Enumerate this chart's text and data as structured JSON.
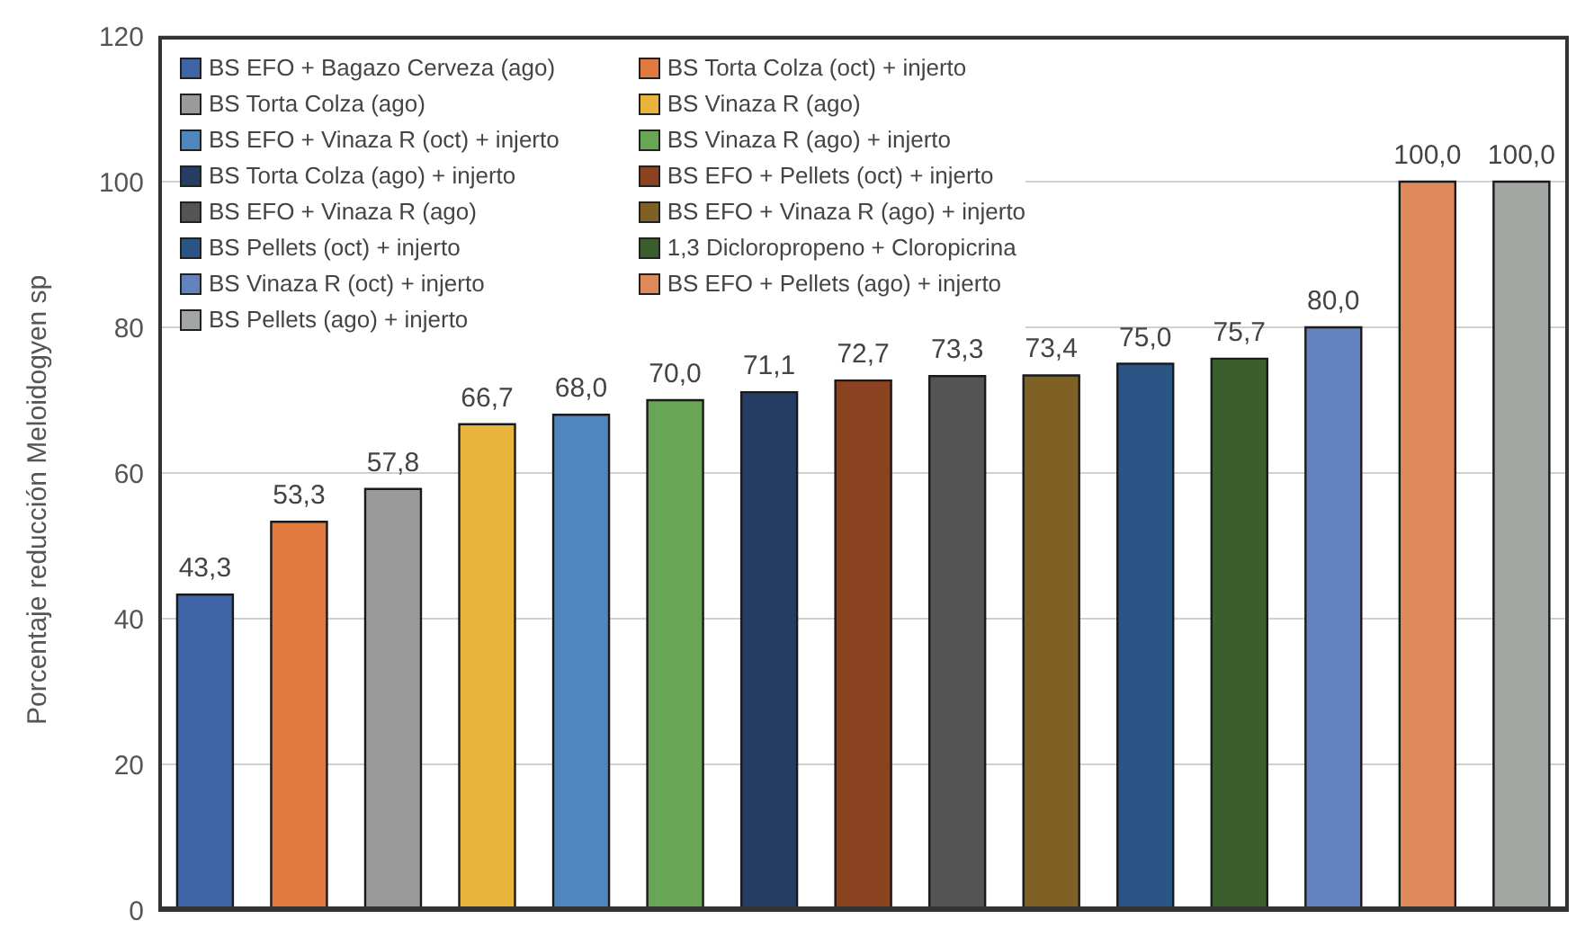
{
  "chart_data": {
    "type": "bar",
    "ylabel": "Porcentaje reducción Meloidogyen sp",
    "categories": [
      null,
      null,
      null,
      null,
      null,
      null,
      null,
      null,
      null,
      null,
      null,
      null,
      null,
      null,
      null
    ],
    "ylim": [
      0,
      120
    ],
    "yticks": [
      0,
      20,
      40,
      60,
      80,
      100,
      120
    ],
    "grid": "y",
    "legend": "top left",
    "series": [
      {
        "name": "BS EFO + Bagazo Cerveza (ago)",
        "color": "#3f64a8",
        "values": [
          43.3,
          null,
          null,
          null,
          null,
          null,
          null,
          null,
          null,
          null,
          null,
          null,
          null,
          null,
          null
        ],
        "value_labels": [
          "43,3",
          null,
          null,
          null,
          null,
          null,
          null,
          null,
          null,
          null,
          null,
          null,
          null,
          null,
          null
        ]
      },
      {
        "name": "BS Torta Colza (oct) + injerto",
        "color": "#e07a3e",
        "values": [
          null,
          53.3,
          null,
          null,
          null,
          null,
          null,
          null,
          null,
          null,
          null,
          null,
          null,
          null,
          null
        ],
        "value_labels": [
          null,
          "53,3",
          null,
          null,
          null,
          null,
          null,
          null,
          null,
          null,
          null,
          null,
          null,
          null,
          null
        ]
      },
      {
        "name": "BS Torta Colza (ago)",
        "color": "#9b9b9b",
        "values": [
          null,
          null,
          57.8,
          null,
          null,
          null,
          null,
          null,
          null,
          null,
          null,
          null,
          null,
          null,
          null
        ],
        "value_labels": [
          null,
          null,
          "57,8",
          null,
          null,
          null,
          null,
          null,
          null,
          null,
          null,
          null,
          null,
          null,
          null
        ]
      },
      {
        "name": "BS Vinaza R (ago)",
        "color": "#e8b43c",
        "values": [
          null,
          null,
          null,
          66.7,
          null,
          null,
          null,
          null,
          null,
          null,
          null,
          null,
          null,
          null,
          null
        ],
        "value_labels": [
          null,
          null,
          null,
          "66,7",
          null,
          null,
          null,
          null,
          null,
          null,
          null,
          null,
          null,
          null,
          null
        ]
      },
      {
        "name": "BS EFO + Vinaza R (oct) + injerto",
        "color": "#4f86bd",
        "values": [
          null,
          null,
          null,
          null,
          68.0,
          null,
          null,
          null,
          null,
          null,
          null,
          null,
          null,
          null,
          null
        ],
        "value_labels": [
          null,
          null,
          null,
          null,
          "68,0",
          null,
          null,
          null,
          null,
          null,
          null,
          null,
          null,
          null,
          null
        ]
      },
      {
        "name": "BS Vinaza R (ago) + injerto",
        "color": "#68a655",
        "values": [
          null,
          null,
          null,
          null,
          null,
          70.0,
          null,
          null,
          null,
          null,
          null,
          null,
          null,
          null,
          null
        ],
        "value_labels": [
          null,
          null,
          null,
          null,
          null,
          "70,0",
          null,
          null,
          null,
          null,
          null,
          null,
          null,
          null,
          null
        ]
      },
      {
        "name": "BS Torta Colza (ago) + injerto",
        "color": "#263d63",
        "values": [
          null,
          null,
          null,
          null,
          null,
          null,
          71.1,
          null,
          null,
          null,
          null,
          null,
          null,
          null,
          null
        ],
        "value_labels": [
          null,
          null,
          null,
          null,
          null,
          null,
          "71,1",
          null,
          null,
          null,
          null,
          null,
          null,
          null,
          null
        ]
      },
      {
        "name": "BS EFO + Pellets (oct) + injerto",
        "color": "#8b4220",
        "values": [
          null,
          null,
          null,
          null,
          null,
          null,
          null,
          72.7,
          null,
          null,
          null,
          null,
          null,
          null,
          null
        ],
        "value_labels": [
          null,
          null,
          null,
          null,
          null,
          null,
          null,
          "72,7",
          null,
          null,
          null,
          null,
          null,
          null,
          null
        ]
      },
      {
        "name": "BS EFO + Vinaza R (ago)",
        "color": "#545454",
        "values": [
          null,
          null,
          null,
          null,
          null,
          null,
          null,
          null,
          73.3,
          null,
          null,
          null,
          null,
          null,
          null
        ],
        "value_labels": [
          null,
          null,
          null,
          null,
          null,
          null,
          null,
          null,
          "73,3",
          null,
          null,
          null,
          null,
          null,
          null
        ]
      },
      {
        "name": "BS EFO + Vinaza R (ago) + injerto",
        "color": "#7f6126",
        "values": [
          null,
          null,
          null,
          null,
          null,
          null,
          null,
          null,
          null,
          73.4,
          null,
          null,
          null,
          null,
          null
        ],
        "value_labels": [
          null,
          null,
          null,
          null,
          null,
          null,
          null,
          null,
          null,
          "73,4",
          null,
          null,
          null,
          null,
          null
        ]
      },
      {
        "name": "BS Pellets (oct) + injerto",
        "color": "#2a5584",
        "values": [
          null,
          null,
          null,
          null,
          null,
          null,
          null,
          null,
          null,
          null,
          75.0,
          null,
          null,
          null,
          null
        ],
        "value_labels": [
          null,
          null,
          null,
          null,
          null,
          null,
          null,
          null,
          null,
          null,
          "75,0",
          null,
          null,
          null,
          null
        ]
      },
      {
        "name": "1,3 Dicloropropeno + Cloropicrina",
        "color": "#3a5e2d",
        "values": [
          null,
          null,
          null,
          null,
          null,
          null,
          null,
          null,
          null,
          null,
          null,
          75.7,
          null,
          null,
          null
        ],
        "value_labels": [
          null,
          null,
          null,
          null,
          null,
          null,
          null,
          null,
          null,
          null,
          null,
          "75,7",
          null,
          null,
          null
        ]
      },
      {
        "name": "BS Vinaza R (oct) + injerto",
        "color": "#6482bd",
        "values": [
          null,
          null,
          null,
          null,
          null,
          null,
          null,
          null,
          null,
          null,
          null,
          null,
          80.0,
          null,
          null
        ],
        "value_labels": [
          null,
          null,
          null,
          null,
          null,
          null,
          null,
          null,
          null,
          null,
          null,
          null,
          "80,0",
          null,
          null
        ]
      },
      {
        "name": "BS EFO + Pellets (ago) + injerto",
        "color": "#df8a5b",
        "values": [
          null,
          null,
          null,
          null,
          null,
          null,
          null,
          null,
          null,
          null,
          null,
          null,
          null,
          100.0,
          null
        ],
        "value_labels": [
          null,
          null,
          null,
          null,
          null,
          null,
          null,
          null,
          null,
          null,
          null,
          null,
          null,
          "100,0",
          null
        ]
      },
      {
        "name": "BS Pellets (ago) + injerto",
        "color": "#a3a7a3",
        "values": [
          null,
          null,
          null,
          null,
          null,
          null,
          null,
          null,
          null,
          null,
          null,
          null,
          null,
          null,
          100.0
        ],
        "value_labels": [
          null,
          null,
          null,
          null,
          null,
          null,
          null,
          null,
          null,
          null,
          null,
          null,
          null,
          null,
          "100,0"
        ]
      }
    ]
  }
}
